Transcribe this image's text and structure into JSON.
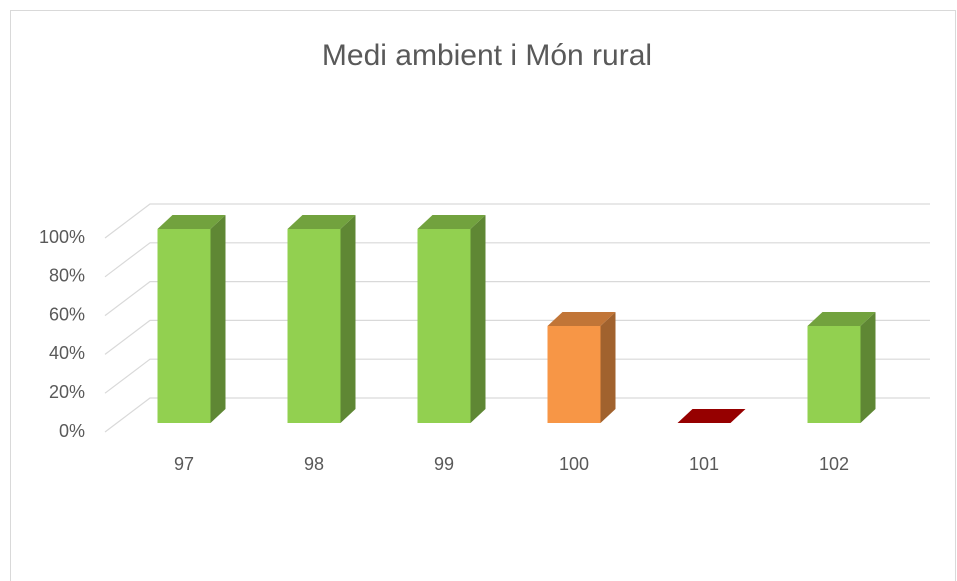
{
  "chart_data": {
    "type": "bar3d",
    "title": "Medi ambient i Món rural",
    "categories": [
      "97",
      "98",
      "99",
      "100",
      "101",
      "102"
    ],
    "values": [
      100,
      100,
      100,
      50,
      0,
      50
    ],
    "colors": [
      "#92d050",
      "#92d050",
      "#92d050",
      "#f79646",
      "#c00000",
      "#92d050"
    ],
    "ylim": [
      0,
      100
    ],
    "yticks": [
      {
        "value": 0,
        "label": "0%"
      },
      {
        "value": 20,
        "label": "20%"
      },
      {
        "value": 40,
        "label": "40%"
      },
      {
        "value": 60,
        "label": "60%"
      },
      {
        "value": 80,
        "label": "80%"
      },
      {
        "value": 100,
        "label": "100%"
      }
    ],
    "grid": true
  }
}
